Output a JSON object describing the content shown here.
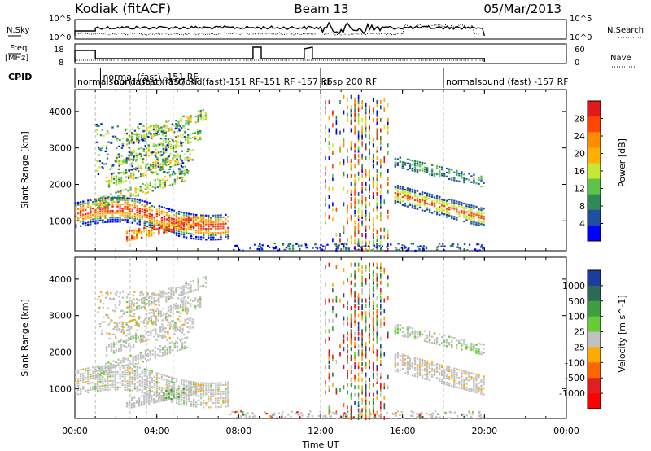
{
  "header": {
    "station": "Kodiak (fitACF)",
    "beam": "Beam 13",
    "date": "05/Mar/2013"
  },
  "panels": {
    "nsky_label": "N.Sky",
    "nsearch_label": "N.Search",
    "freq_label_1": "Freq.",
    "freq_label_2": "[MHz]",
    "nave_label": "Nave",
    "cpid_label": "CPID",
    "nsky_ticks": [
      "10^5",
      "10^0"
    ],
    "nsearch_ticks": [
      "10^5",
      "10^0"
    ],
    "freq_ticks": [
      "18",
      "8"
    ],
    "nave_ticks": [
      "60",
      "0"
    ]
  },
  "cpid_segments": [
    {
      "label": "normalsound (fast) -157 RF",
      "x": 0.0
    },
    {
      "label": "normal (fast) -151 RF",
      "x": 1.25
    },
    {
      "label": "rbsp 200 RF",
      "x": 12.0
    },
    {
      "label": "normalsound (fast) -157 RF",
      "x": 18.0
    }
  ],
  "cpid_overlap_text": "nor(fast)or(fast)ond(fast)-151 RF-151 RF -157 RF",
  "power_panel": {
    "ylabel": "Slant Range [km]",
    "cbar_label": "Power [dB]",
    "cbar_ticks": [
      "28",
      "24",
      "20",
      "16",
      "12",
      "8",
      "4"
    ],
    "cbar_colors": [
      "#e31a1c",
      "#ff4500",
      "#ff8c00",
      "#ffb000",
      "#c8e632",
      "#5fc24a",
      "#2e8b57",
      "#1e4fa0",
      "#0000ff"
    ]
  },
  "velocity_panel": {
    "ylabel": "Slant Range [km]",
    "cbar_label": "Velocity [m s^-1]",
    "cbar_ticks": [
      "1000",
      "500",
      "100",
      "25",
      "-25",
      "-100",
      "-500",
      "-1000"
    ],
    "cbar_colors": [
      "#1e3ca0",
      "#2e6b57",
      "#3f9f3f",
      "#66cc33",
      "#c0c0c0",
      "#ffaa00",
      "#ff6600",
      "#e02020",
      "#ff0000"
    ]
  },
  "chart_data": {
    "type": "heatmap",
    "xlabel": "Time UT",
    "ylabel": "Slant Range [km]",
    "x_ticks": [
      "00:00",
      "04:00",
      "08:00",
      "12:00",
      "16:00",
      "20:00",
      "00:00"
    ],
    "y_ticks": [
      "1000",
      "2000",
      "3000",
      "4000"
    ],
    "xlim": [
      0,
      24
    ],
    "ylim": [
      180,
      4600
    ],
    "data_span": [
      0,
      20
    ],
    "series": [
      {
        "name": "Power [dB]",
        "values": []
      },
      {
        "name": "Velocity [m s^-1]",
        "values": []
      }
    ]
  }
}
